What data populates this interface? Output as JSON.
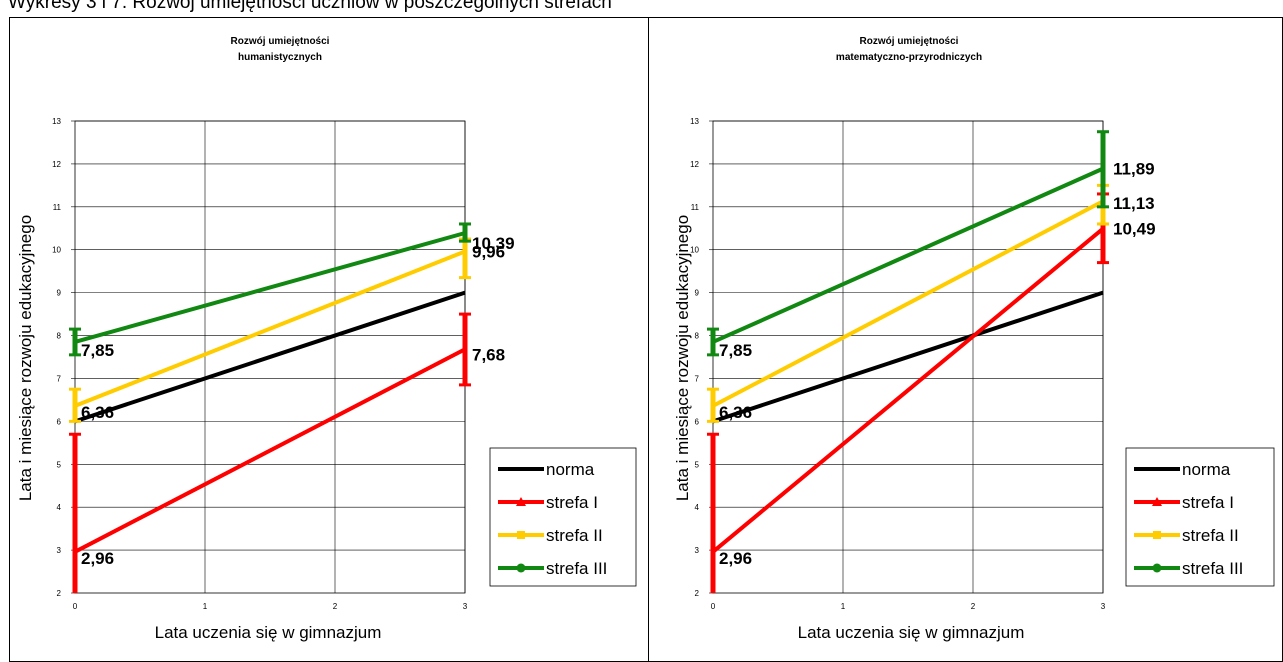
{
  "page_heading": "Wykresy 3 i 7. Rozwój umiejętności uczniów w poszczególnych strefach",
  "colors": {
    "norma": "#000000",
    "strefa I": "#ff0000",
    "strefa II": "#ffcc00",
    "strefa III": "#118811"
  },
  "chart_data": [
    {
      "type": "line",
      "title": [
        "Rozwój umiejętności",
        "humanistycznych"
      ],
      "xlabel": "Lata uczenia się w gimnazjum",
      "ylabel": "Lata i miesiące rozwoju edukacyjnego",
      "xlim": [
        0,
        3
      ],
      "ylim": [
        2,
        13
      ],
      "xticks": [
        "0",
        "1",
        "2",
        "3"
      ],
      "yticks": [
        "2",
        "3",
        "4",
        "5",
        "6",
        "7",
        "8",
        "9",
        "10",
        "11",
        "12",
        "13"
      ],
      "grid": true,
      "legend_position": "bottom-right",
      "series": [
        {
          "name": "norma",
          "x": [
            0,
            3
          ],
          "y": [
            6,
            9
          ],
          "labels": [
            "",
            ""
          ],
          "error": null
        },
        {
          "name": "strefa I",
          "x": [
            0,
            3
          ],
          "y": [
            2.96,
            7.68
          ],
          "labels": [
            "2,96",
            "7,68"
          ],
          "error": [
            [
              2,
              5.7
            ],
            [
              6.85,
              8.5
            ]
          ]
        },
        {
          "name": "strefa II",
          "x": [
            0,
            3
          ],
          "y": [
            6.36,
            9.96
          ],
          "labels": [
            "6,36",
            "9,96"
          ],
          "error": [
            [
              6.0,
              6.75
            ],
            [
              9.35,
              10.25
            ]
          ]
        },
        {
          "name": "strefa III",
          "x": [
            0,
            3
          ],
          "y": [
            7.85,
            10.39
          ],
          "labels": [
            "7,85",
            "10,39"
          ],
          "error": [
            [
              7.55,
              8.15
            ],
            [
              10.2,
              10.6
            ]
          ]
        }
      ]
    },
    {
      "type": "line",
      "title": [
        "Rozwój umiejętności",
        "matematyczno-przyrodniczych"
      ],
      "xlabel": "Lata uczenia się w gimnazjum",
      "ylabel": "Lata i miesiące rozwoju edukacyjnego",
      "xlim": [
        0,
        3
      ],
      "ylim": [
        2,
        13
      ],
      "xticks": [
        "0",
        "1",
        "2",
        "3"
      ],
      "yticks": [
        "2",
        "3",
        "4",
        "5",
        "6",
        "7",
        "8",
        "9",
        "10",
        "11",
        "12",
        "13"
      ],
      "grid": true,
      "legend_position": "bottom-right",
      "series": [
        {
          "name": "norma",
          "x": [
            0,
            3
          ],
          "y": [
            6,
            9
          ],
          "labels": [
            "",
            ""
          ],
          "error": null
        },
        {
          "name": "strefa I",
          "x": [
            0,
            3
          ],
          "y": [
            2.96,
            10.49
          ],
          "labels": [
            "2,96",
            "10,49"
          ],
          "error": [
            [
              2,
              5.7
            ],
            [
              9.7,
              11.3
            ]
          ]
        },
        {
          "name": "strefa II",
          "x": [
            0,
            3
          ],
          "y": [
            6.36,
            11.13
          ],
          "labels": [
            "6,36",
            "11,13"
          ],
          "error": [
            [
              6.0,
              6.75
            ],
            [
              10.6,
              11.5
            ]
          ]
        },
        {
          "name": "strefa III",
          "x": [
            0,
            3
          ],
          "y": [
            7.85,
            11.89
          ],
          "labels": [
            "7,85",
            "11,89"
          ],
          "error": [
            [
              7.55,
              8.15
            ],
            [
              11.0,
              12.75
            ]
          ]
        }
      ]
    }
  ]
}
